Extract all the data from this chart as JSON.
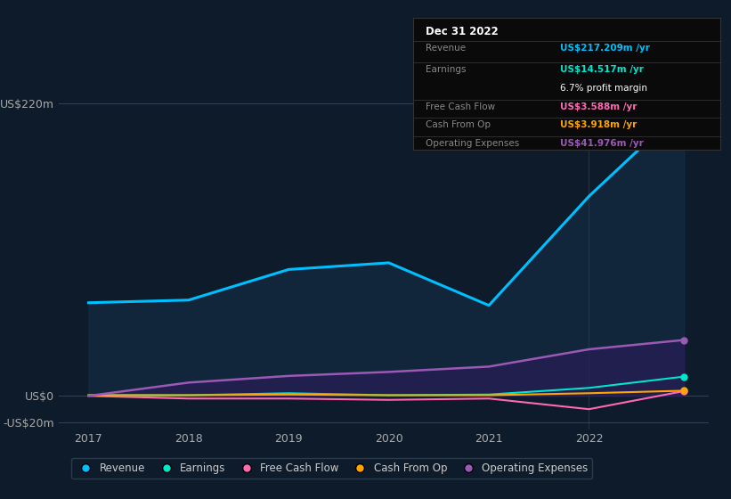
{
  "background_color": "#0d1b2a",
  "plot_bg_color": "#0d1b2a",
  "years": [
    2017,
    2018,
    2019,
    2020,
    2021,
    2022,
    2022.95
  ],
  "revenue": [
    70,
    72,
    95,
    100,
    68,
    150,
    217
  ],
  "earnings": [
    0.5,
    0.5,
    2,
    0.5,
    1,
    6,
    14.5
  ],
  "free_cash_flow": [
    0,
    -2,
    -2,
    -3,
    -2,
    -10,
    3.6
  ],
  "cash_from_op": [
    0.5,
    0.5,
    1,
    0.5,
    0.5,
    2,
    3.9
  ],
  "operating_expenses": [
    0,
    10,
    15,
    18,
    22,
    35,
    42
  ],
  "revenue_color": "#00bfff",
  "earnings_color": "#00e5cc",
  "free_cash_flow_color": "#ff69b4",
  "cash_from_op_color": "#ffa500",
  "operating_expenses_color": "#9b59b6",
  "fill_revenue_color": "#1a3a5c",
  "fill_opex_color": "#2d1b5c",
  "y_top_label": "US$220m",
  "y_zero_label": "US$0",
  "y_neg_label": "-US$20m",
  "x_labels": [
    "2017",
    "2018",
    "2019",
    "2020",
    "2021",
    "2022"
  ],
  "ylim": [
    -25,
    230
  ],
  "tooltip_title": "Dec 31 2022",
  "tooltip_revenue_label": "Revenue",
  "tooltip_revenue_val": "US$217.209m /yr",
  "tooltip_earnings_label": "Earnings",
  "tooltip_earnings_val": "US$14.517m /yr",
  "tooltip_margin": "6.7% profit margin",
  "tooltip_fcf_label": "Free Cash Flow",
  "tooltip_fcf_val": "US$3.588m /yr",
  "tooltip_cashop_label": "Cash From Op",
  "tooltip_cashop_val": "US$3.918m /yr",
  "tooltip_opex_label": "Operating Expenses",
  "tooltip_opex_val": "US$41.976m /yr",
  "legend_labels": [
    "Revenue",
    "Earnings",
    "Free Cash Flow",
    "Cash From Op",
    "Operating Expenses"
  ],
  "legend_colors": [
    "#00bfff",
    "#00e5cc",
    "#ff69b4",
    "#ffa500",
    "#9b59b6"
  ]
}
